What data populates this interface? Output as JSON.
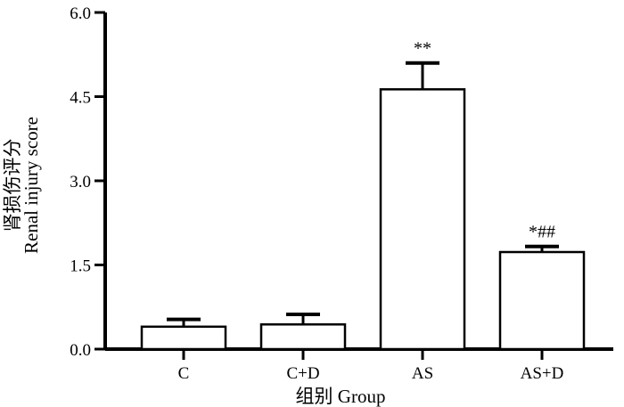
{
  "chart_data": {
    "type": "bar",
    "title": "",
    "categories": [
      "C",
      "C+D",
      "AS",
      "AS+D"
    ],
    "values": [
      0.4,
      0.44,
      4.63,
      1.73
    ],
    "errors": [
      0.13,
      0.18,
      0.47,
      0.1
    ],
    "annotations": [
      "",
      "",
      "**",
      "*##"
    ],
    "xlabel": "组别  Group",
    "ylabel_zh": "肾损伤评分",
    "ylabel_en": "Renal injury score",
    "ylim": [
      0,
      6.0
    ],
    "yticks": [
      "0.0",
      "1.5",
      "3.0",
      "4.5",
      "6.0"
    ],
    "grid": false,
    "legend": "none"
  }
}
